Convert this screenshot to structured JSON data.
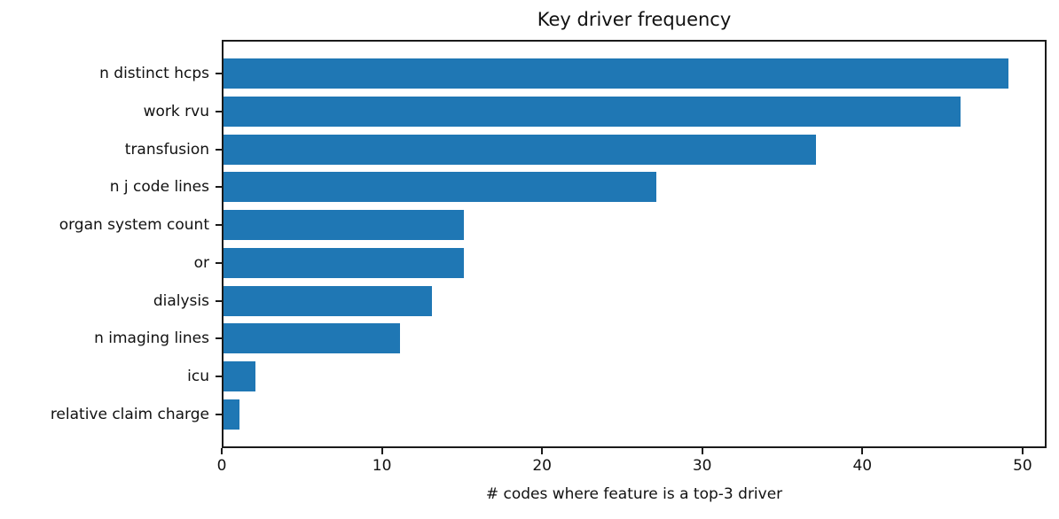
{
  "chart_data": {
    "type": "bar",
    "orientation": "horizontal",
    "title": "Key driver frequency",
    "xlabel": "# codes where feature is a top-3 driver",
    "categories": [
      "n distinct hcps",
      "work rvu",
      "transfusion",
      "n j code lines",
      "organ system count",
      "or",
      "dialysis",
      "n imaging lines",
      "icu",
      "relative claim charge"
    ],
    "values": [
      49,
      46,
      37,
      27,
      15,
      15,
      13,
      11,
      2,
      1
    ],
    "xticks": [
      0,
      10,
      20,
      30,
      40,
      50
    ],
    "xlim": [
      0,
      51.5
    ],
    "bar_color": "#1f77b4",
    "axis_color": "#1a1a1a",
    "grid": false,
    "legend_position": "none"
  }
}
